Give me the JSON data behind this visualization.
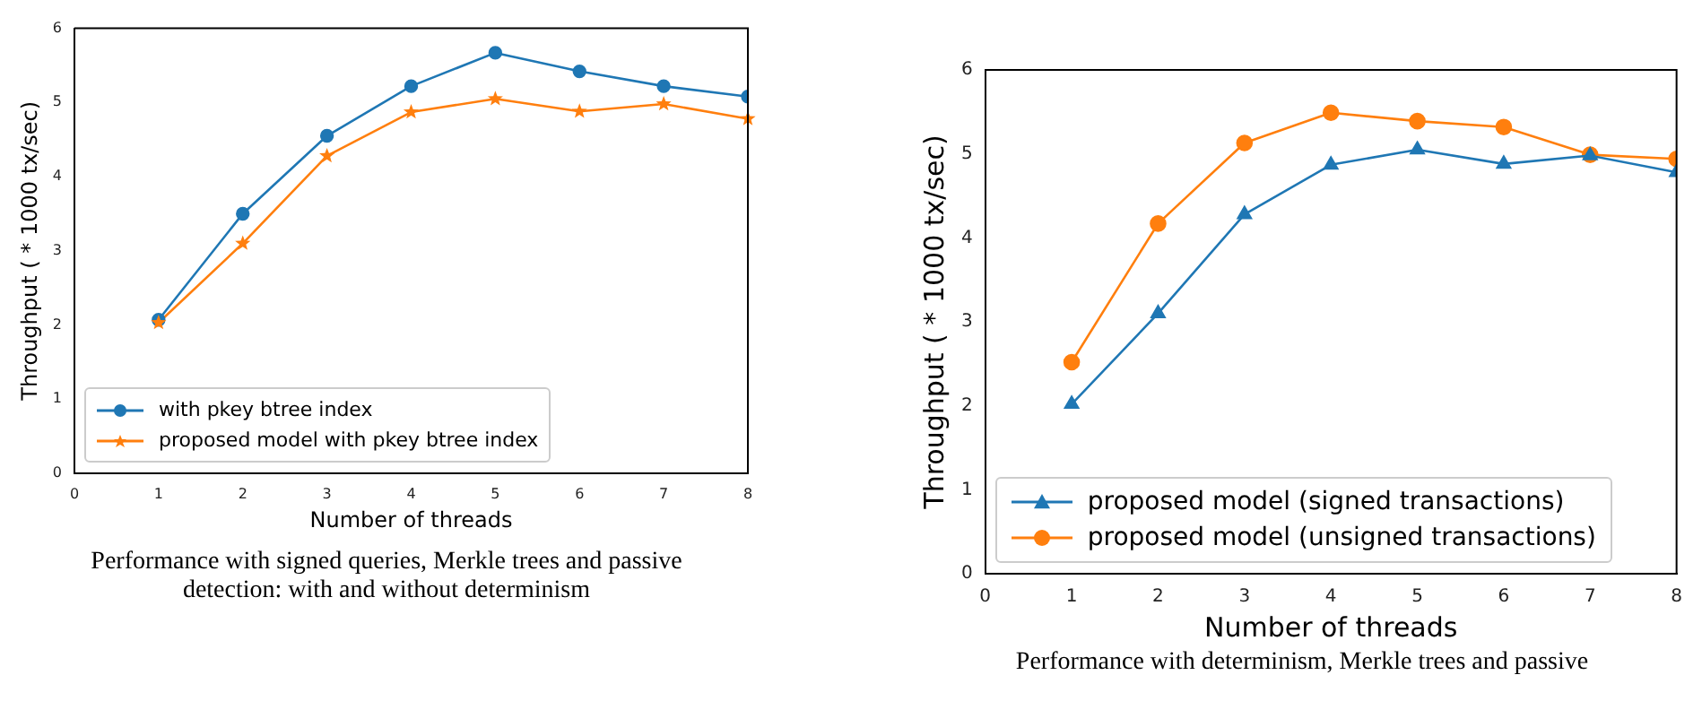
{
  "chart_data": [
    {
      "type": "line",
      "xlabel": "Number of threads",
      "ylabel": "Throughput ( * 1000 tx/sec)",
      "x": [
        1,
        2,
        3,
        4,
        5,
        6,
        7,
        8
      ],
      "series": [
        {
          "name": "with pkey btree index",
          "color": "#1f77b4",
          "marker": "circle",
          "values": [
            2.07,
            3.5,
            4.55,
            5.22,
            5.67,
            5.42,
            5.22,
            5.08
          ]
        },
        {
          "name": "proposed model with pkey btree index",
          "color": "#ff7f0e",
          "marker": "star",
          "values": [
            2.03,
            3.1,
            4.28,
            4.87,
            5.05,
            4.88,
            4.98,
            4.78
          ]
        }
      ],
      "xlim": [
        0,
        8
      ],
      "xticks": [
        0,
        1,
        2,
        3,
        4,
        5,
        6,
        7,
        8
      ],
      "ylim": [
        0,
        6
      ],
      "yticks": [
        0,
        1,
        2,
        3,
        4,
        5,
        6
      ],
      "grid": false,
      "legend": "bottom left",
      "line_style": "solid",
      "annotations": [
        "Performance with signed queries, Merkle trees and passive detection: with and without determinism"
      ]
    },
    {
      "type": "line",
      "xlabel": "Number of threads",
      "ylabel": "Throughput ( * 1000 tx/sec)",
      "x": [
        1,
        2,
        3,
        4,
        5,
        6,
        7,
        8
      ],
      "series": [
        {
          "name": "proposed model (signed transactions)",
          "color": "#1f77b4",
          "marker": "triangle",
          "values": [
            2.02,
            3.1,
            4.28,
            4.87,
            5.05,
            4.88,
            4.98,
            4.78
          ]
        },
        {
          "name": "proposed model (unsigned transactions)",
          "color": "#ff7f0e",
          "marker": "circle",
          "values": [
            2.52,
            4.17,
            5.13,
            5.49,
            5.39,
            5.32,
            4.99,
            4.94
          ]
        }
      ],
      "xlim": [
        0,
        8
      ],
      "xticks": [
        0,
        1,
        2,
        3,
        4,
        5,
        6,
        7,
        8
      ],
      "ylim": [
        0,
        6
      ],
      "yticks": [
        0,
        1,
        2,
        3,
        4,
        5,
        6
      ],
      "grid": false,
      "legend": "bottom left",
      "line_style": "solid",
      "annotations": [
        "Performance with determinism, Merkle trees and passive"
      ]
    }
  ]
}
